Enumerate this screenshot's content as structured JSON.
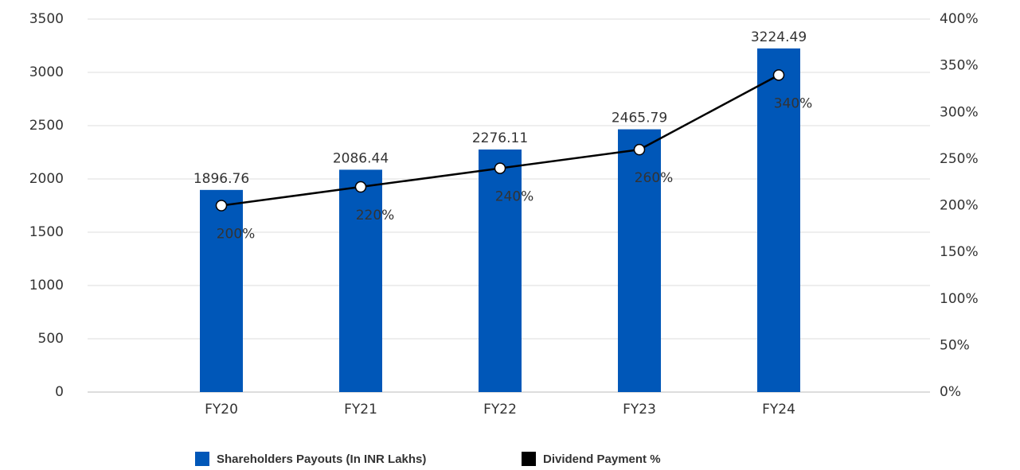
{
  "chart_data": {
    "type": "bar",
    "categories": [
      "FY20",
      "FY21",
      "FY22",
      "FY23",
      "FY24"
    ],
    "series": [
      {
        "name": "Shareholders Payouts (In INR Lakhs)",
        "type": "bar",
        "color": "#0057b8",
        "values": [
          1896.76,
          2086.44,
          2276.11,
          2465.79,
          3224.49
        ]
      },
      {
        "name": "Dividend Payment %",
        "type": "line",
        "axis": "y2",
        "color": "#000000",
        "values": [
          200,
          220,
          240,
          260,
          340
        ],
        "value_labels": [
          "200%",
          "220%",
          "240%",
          "260%",
          "340%"
        ]
      }
    ],
    "ylim": [
      0,
      3500
    ],
    "yticks": [
      0,
      500,
      1000,
      1500,
      2000,
      2500,
      3000,
      3500
    ],
    "y2lim": [
      0,
      400
    ],
    "y2ticks": [
      {
        "value": 0,
        "label": "0%"
      },
      {
        "value": 50,
        "label": "50%"
      },
      {
        "value": 100,
        "label": "100%"
      },
      {
        "value": 150,
        "label": "150%"
      },
      {
        "value": 200,
        "label": "200%"
      },
      {
        "value": 250,
        "label": "250%"
      },
      {
        "value": 300,
        "label": "300%"
      },
      {
        "value": 350,
        "label": "350%"
      },
      {
        "value": 400,
        "label": "400%"
      }
    ],
    "grid": true,
    "legend": "bottom"
  }
}
